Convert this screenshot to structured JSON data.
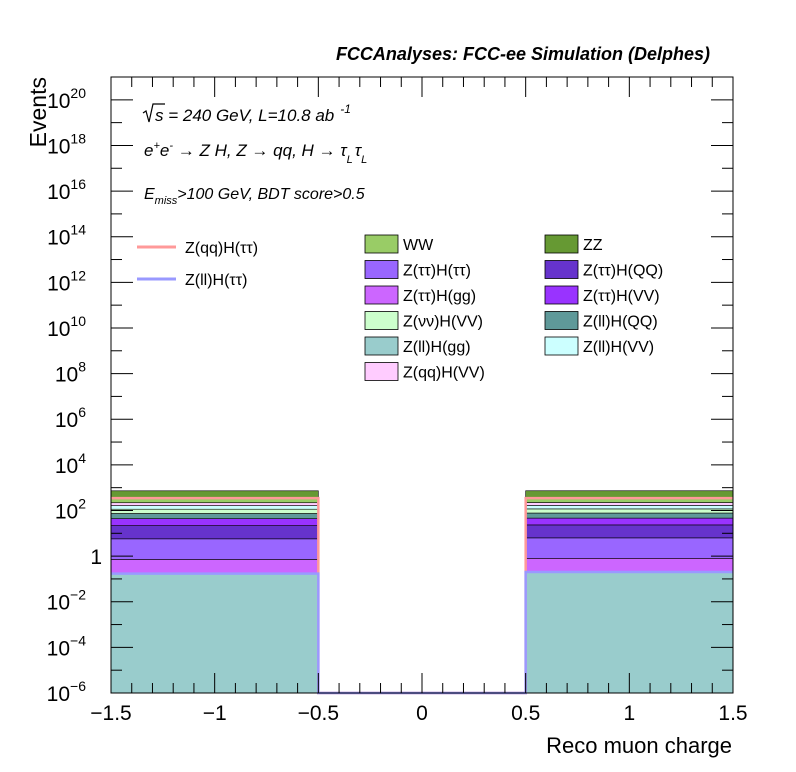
{
  "header": "FCCAnalyses: FCC-ee Simulation (Delphes)",
  "annotations": {
    "line1_sqrt": "s",
    "line1_rest": " = 240 GeV, L=10.8 ab",
    "line1_exp": "-1",
    "line2_a": "e",
    "line2_sup1": "+",
    "line2_b": "e",
    "line2_sup2": "-",
    "line2_c": " → Z H, Z  → qq, H  → ",
    "line2_tau1": "τ",
    "line2_sub1": "L",
    "line2_tau2": "τ",
    "line2_sub2": "L",
    "line3_a": "E",
    "line3_sub": "miss",
    "line3_rest": ">100 GeV, BDT score>0.5"
  },
  "chart_data": {
    "type": "bar",
    "subtype": "stacked-histogram",
    "xlabel": "Reco muon charge",
    "ylabel": "Events",
    "xlim": [
      -1.5,
      1.5
    ],
    "ylim": [
      1e-06,
      1e+21
    ],
    "yscale": "log",
    "x_ticks": [
      {
        "value": -1.5,
        "label": "−1.5"
      },
      {
        "value": -1,
        "label": "−1"
      },
      {
        "value": -0.5,
        "label": "−0.5"
      },
      {
        "value": 0,
        "label": "0"
      },
      {
        "value": 0.5,
        "label": "0.5"
      },
      {
        "value": 1,
        "label": "1"
      },
      {
        "value": 1.5,
        "label": "1.5"
      }
    ],
    "y_ticks": [
      {
        "value": 1e-06,
        "base": "10",
        "exp": "−6"
      },
      {
        "value": 0.0001,
        "base": "10",
        "exp": "−4"
      },
      {
        "value": 0.01,
        "base": "10",
        "exp": "−2"
      },
      {
        "value": 1,
        "base": "1",
        "exp": ""
      },
      {
        "value": 100.0,
        "base": "10",
        "exp": "2"
      },
      {
        "value": 10000.0,
        "base": "10",
        "exp": "4"
      },
      {
        "value": 1000000.0,
        "base": "10",
        "exp": "6"
      },
      {
        "value": 100000000.0,
        "base": "10",
        "exp": "8"
      },
      {
        "value": 10000000000.0,
        "base": "10",
        "exp": "10"
      },
      {
        "value": 1000000000000.0,
        "base": "10",
        "exp": "12"
      },
      {
        "value": 100000000000000.0,
        "base": "10",
        "exp": "14"
      },
      {
        "value": 1e+16,
        "base": "10",
        "exp": "16"
      },
      {
        "value": 1e+18,
        "base": "10",
        "exp": "18"
      },
      {
        "value": 1e+20,
        "base": "10",
        "exp": "20"
      }
    ],
    "bins": [
      {
        "lo": -1.5,
        "hi": -0.5
      },
      {
        "lo": -0.5,
        "hi": 0.5
      },
      {
        "lo": 0.5,
        "hi": 1.5
      }
    ],
    "stack": [
      {
        "name": "Z(ll)H(gg)",
        "color": "#99cccc",
        "values": [
          0.17,
          0,
          0.2
        ]
      },
      {
        "name": "Z(ττ)H(gg)",
        "color": "#cc66ff",
        "values": [
          0.55,
          0,
          0.6
        ]
      },
      {
        "name": "Z(ττ)H(ττ)",
        "color": "#9966ff",
        "values": [
          5,
          0,
          5.5
        ]
      },
      {
        "name": "Z(ττ)H(QQ)",
        "color": "#6633cc",
        "values": [
          16,
          0,
          17
        ]
      },
      {
        "name": "Z(ττ)H(VV)",
        "color": "#9933ff",
        "values": [
          22,
          0,
          23
        ]
      },
      {
        "name": "Z(ll)H(QQ)",
        "color": "#5f9999",
        "values": [
          30,
          0,
          31
        ]
      },
      {
        "name": "Z(νν)H(VV)",
        "color": "#ccffcc",
        "values": [
          40,
          0,
          40
        ]
      },
      {
        "name": "Z(ll)H(VV)",
        "color": "#ccffff",
        "values": [
          50,
          0,
          50
        ]
      },
      {
        "name": "Z(qq)H(VV)",
        "color": "#ffccff",
        "values": [
          55,
          0,
          55
        ]
      },
      {
        "name": "WW",
        "color": "#99cc66",
        "values": [
          110,
          0,
          110
        ]
      },
      {
        "name": "ZZ",
        "color": "#669933",
        "values": [
          400,
          0,
          400
        ]
      }
    ],
    "signals": [
      {
        "name": "Z(qq)H(ττ)",
        "color": "#ff9999",
        "values": [
          350,
          1e-06,
          350
        ]
      },
      {
        "name": "Z(ll)H(ττ)",
        "color": "#9999ff",
        "values": [
          0.17,
          1e-06,
          0.2
        ]
      }
    ],
    "legend_signals": [
      "Z(qq)H(ττ)",
      "Z(ll)H(ττ)"
    ],
    "legend_backgrounds": [
      "WW",
      "ZZ",
      "Z(ττ)H(ττ)",
      "Z(ττ)H(QQ)",
      "Z(ττ)H(gg)",
      "Z(ττ)H(VV)",
      "Z(νν)H(VV)",
      "Z(ll)H(QQ)",
      "Z(ll)H(gg)",
      "Z(ll)H(VV)",
      "Z(qq)H(VV)"
    ]
  }
}
